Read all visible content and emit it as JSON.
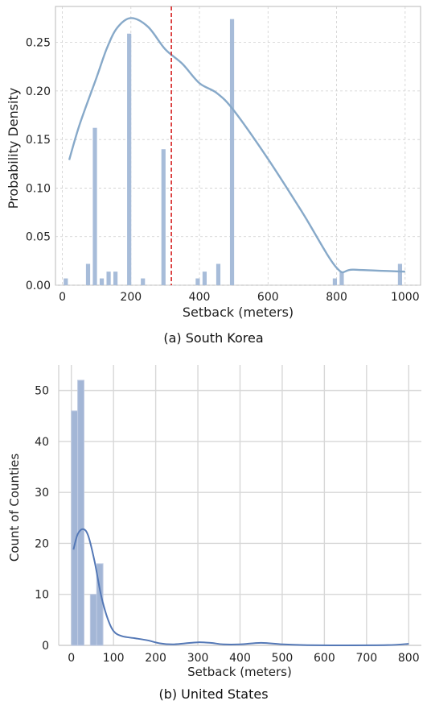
{
  "chart_data": [
    {
      "type": "bar",
      "caption": "(a) South Korea",
      "xlabel": "Setback (meters)",
      "ylabel": "Probability Density",
      "xlim": [
        -20,
        1045
      ],
      "ylim": [
        0,
        0.287
      ],
      "xticks": [
        0,
        200,
        400,
        600,
        800,
        1000
      ],
      "yticks": [
        0.0,
        0.05,
        0.1,
        0.15,
        0.2,
        0.25
      ],
      "ytick_labels": [
        "0.00",
        "0.05",
        "0.10",
        "0.15",
        "0.20",
        "0.25"
      ],
      "grid": true,
      "colors": {
        "bar": "#a7bcd9",
        "line": "#87a9c9",
        "mean_line": "#d62020"
      },
      "bin_width": 15,
      "bars": [
        {
          "x": 10,
          "y": 0.007
        },
        {
          "x": 75,
          "y": 0.022
        },
        {
          "x": 95,
          "y": 0.162
        },
        {
          "x": 115,
          "y": 0.007
        },
        {
          "x": 135,
          "y": 0.014
        },
        {
          "x": 155,
          "y": 0.014
        },
        {
          "x": 195,
          "y": 0.259
        },
        {
          "x": 235,
          "y": 0.007
        },
        {
          "x": 295,
          "y": 0.14
        },
        {
          "x": 395,
          "y": 0.007
        },
        {
          "x": 415,
          "y": 0.014
        },
        {
          "x": 455,
          "y": 0.022
        },
        {
          "x": 495,
          "y": 0.274
        },
        {
          "x": 795,
          "y": 0.007
        },
        {
          "x": 815,
          "y": 0.014
        },
        {
          "x": 985,
          "y": 0.022
        }
      ],
      "density_curve": [
        {
          "x": 20,
          "y": 0.129
        },
        {
          "x": 50,
          "y": 0.165
        },
        {
          "x": 100,
          "y": 0.214
        },
        {
          "x": 130,
          "y": 0.244
        },
        {
          "x": 160,
          "y": 0.265
        },
        {
          "x": 200,
          "y": 0.275
        },
        {
          "x": 250,
          "y": 0.266
        },
        {
          "x": 300,
          "y": 0.243
        },
        {
          "x": 350,
          "y": 0.228
        },
        {
          "x": 400,
          "y": 0.208
        },
        {
          "x": 450,
          "y": 0.198
        },
        {
          "x": 500,
          "y": 0.18
        },
        {
          "x": 600,
          "y": 0.13
        },
        {
          "x": 700,
          "y": 0.075
        },
        {
          "x": 800,
          "y": 0.018
        },
        {
          "x": 850,
          "y": 0.016
        },
        {
          "x": 1000,
          "y": 0.014
        }
      ],
      "mean": 318
    },
    {
      "type": "bar",
      "caption": "(b) United States",
      "xlabel": "Setback (meters)",
      "ylabel": "Count of Counties",
      "xlim": [
        -30,
        830
      ],
      "ylim": [
        0,
        55
      ],
      "xticks": [
        0,
        100,
        200,
        300,
        400,
        500,
        600,
        700,
        800
      ],
      "yticks": [
        0,
        10,
        20,
        30,
        40,
        50
      ],
      "ytick_labels": [
        "0",
        "10",
        "20",
        "30",
        "40",
        "50"
      ],
      "grid": true,
      "colors": {
        "bar": "#a3b6d6",
        "line": "#5478b6"
      },
      "bin_width": 15,
      "bars": [
        {
          "x": 7.5,
          "y": 46
        },
        {
          "x": 22.5,
          "y": 52
        },
        {
          "x": 37.5,
          "y": 0
        },
        {
          "x": 52.5,
          "y": 10
        },
        {
          "x": 67.5,
          "y": 16
        }
      ],
      "density_curve": [
        {
          "x": 5,
          "y": 18.8
        },
        {
          "x": 15,
          "y": 21.8
        },
        {
          "x": 28,
          "y": 22.8
        },
        {
          "x": 40,
          "y": 21.5
        },
        {
          "x": 55,
          "y": 16.5
        },
        {
          "x": 70,
          "y": 10.0
        },
        {
          "x": 85,
          "y": 5.5
        },
        {
          "x": 100,
          "y": 2.8
        },
        {
          "x": 120,
          "y": 1.8
        },
        {
          "x": 150,
          "y": 1.4
        },
        {
          "x": 180,
          "y": 1.0
        },
        {
          "x": 210,
          "y": 0.4
        },
        {
          "x": 240,
          "y": 0.2
        },
        {
          "x": 270,
          "y": 0.4
        },
        {
          "x": 300,
          "y": 0.6
        },
        {
          "x": 330,
          "y": 0.5
        },
        {
          "x": 360,
          "y": 0.2
        },
        {
          "x": 400,
          "y": 0.2
        },
        {
          "x": 450,
          "y": 0.5
        },
        {
          "x": 500,
          "y": 0.2
        },
        {
          "x": 550,
          "y": 0.05
        },
        {
          "x": 650,
          "y": 0.0
        },
        {
          "x": 750,
          "y": 0.05
        },
        {
          "x": 800,
          "y": 0.3
        }
      ]
    }
  ]
}
